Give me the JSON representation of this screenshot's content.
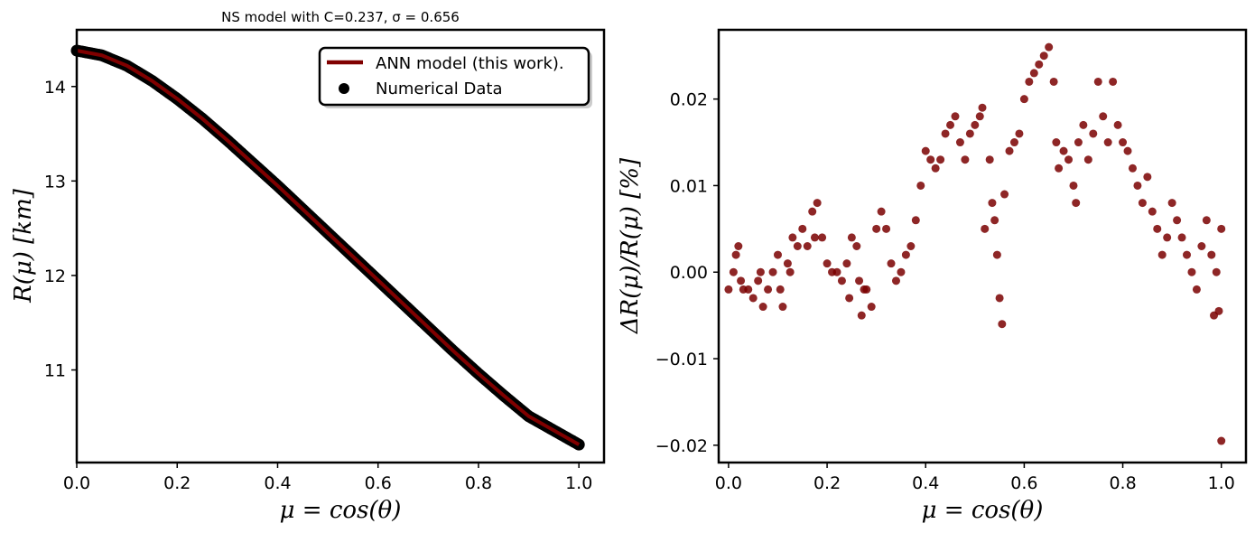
{
  "colors": {
    "line": "#800000",
    "left_points": "#000000",
    "right_points": "#7a0000"
  },
  "chart_data": [
    {
      "type": "line",
      "title": "NS model with C=0.237, σ = 0.656",
      "xlabel": "μ = cos(θ)",
      "ylabel": "R(μ) [km]",
      "xlim": [
        0,
        1.05
      ],
      "ylim": [
        10.02,
        14.6
      ],
      "xticks": [
        "0.0",
        "0.2",
        "0.4",
        "0.6",
        "0.8",
        "1.0"
      ],
      "yticks": [
        "11",
        "12",
        "13",
        "14"
      ],
      "grid": false,
      "legend_position": "top-right",
      "legend": [
        "ANN model (this work).",
        "Numerical Data"
      ],
      "series": [
        {
          "name": "ANN model (this work).",
          "kind": "line",
          "x": [
            0.0,
            0.05,
            0.1,
            0.15,
            0.2,
            0.25,
            0.3,
            0.35,
            0.4,
            0.45,
            0.5,
            0.55,
            0.6,
            0.65,
            0.7,
            0.75,
            0.8,
            0.85,
            0.9,
            0.95,
            1.0
          ],
          "y": [
            14.38,
            14.33,
            14.22,
            14.06,
            13.87,
            13.66,
            13.43,
            13.19,
            12.95,
            12.7,
            12.45,
            12.2,
            11.95,
            11.7,
            11.45,
            11.2,
            10.96,
            10.73,
            10.51,
            10.36,
            10.21
          ]
        },
        {
          "name": "Numerical Data",
          "kind": "scatter",
          "x": [
            0.0,
            0.05,
            0.1,
            0.15,
            0.2,
            0.25,
            0.3,
            0.35,
            0.4,
            0.45,
            0.5,
            0.55,
            0.6,
            0.65,
            0.7,
            0.75,
            0.8,
            0.85,
            0.9,
            0.95,
            1.0
          ],
          "y": [
            14.38,
            14.33,
            14.22,
            14.06,
            13.87,
            13.66,
            13.43,
            13.19,
            12.95,
            12.7,
            12.45,
            12.2,
            11.95,
            11.7,
            11.45,
            11.2,
            10.96,
            10.73,
            10.51,
            10.36,
            10.21
          ]
        }
      ]
    },
    {
      "type": "scatter",
      "title": "",
      "xlabel": "μ = cos(θ)",
      "ylabel": "ΔR(μ)/R(μ) [%]",
      "xlim": [
        -0.02,
        1.05
      ],
      "ylim": [
        -0.022,
        0.028
      ],
      "xticks": [
        "0.0",
        "0.2",
        "0.4",
        "0.6",
        "0.8",
        "1.0"
      ],
      "yticks": [
        "−0.02",
        "−0.01",
        "0.00",
        "0.01",
        "0.02"
      ],
      "grid": false,
      "series": [
        {
          "x": [
            0.0,
            0.01,
            0.015,
            0.02,
            0.025,
            0.03,
            0.04,
            0.05,
            0.06,
            0.065,
            0.07,
            0.08,
            0.09,
            0.1,
            0.105,
            0.11,
            0.12,
            0.125,
            0.13,
            0.14,
            0.15,
            0.16,
            0.17,
            0.175,
            0.18,
            0.19,
            0.2,
            0.21,
            0.22,
            0.23,
            0.24,
            0.245,
            0.25,
            0.26,
            0.265,
            0.27,
            0.275,
            0.28,
            0.29,
            0.3,
            0.31,
            0.32,
            0.33,
            0.34,
            0.35,
            0.36,
            0.37,
            0.38,
            0.39,
            0.4,
            0.41,
            0.42,
            0.43,
            0.44,
            0.45,
            0.46,
            0.47,
            0.48,
            0.49,
            0.5,
            0.51,
            0.515,
            0.52,
            0.53,
            0.535,
            0.54,
            0.545,
            0.55,
            0.555,
            0.56,
            0.57,
            0.58,
            0.59,
            0.6,
            0.61,
            0.62,
            0.63,
            0.64,
            0.65,
            0.66,
            0.665,
            0.67,
            0.68,
            0.69,
            0.7,
            0.705,
            0.71,
            0.72,
            0.73,
            0.74,
            0.75,
            0.76,
            0.77,
            0.78,
            0.79,
            0.8,
            0.81,
            0.82,
            0.83,
            0.84,
            0.85,
            0.86,
            0.87,
            0.88,
            0.89,
            0.9,
            0.91,
            0.92,
            0.93,
            0.94,
            0.95,
            0.96,
            0.97,
            0.98,
            0.99,
            1.0
          ],
          "y": [
            -0.002,
            0.0,
            0.002,
            0.003,
            -0.001,
            -0.002,
            -0.002,
            -0.003,
            -0.001,
            0.0,
            -0.004,
            -0.002,
            0.0,
            0.002,
            -0.002,
            -0.004,
            0.001,
            0.0,
            0.004,
            0.003,
            0.005,
            0.003,
            0.007,
            0.004,
            0.008,
            0.004,
            0.001,
            0.0,
            0.0,
            -0.001,
            0.001,
            -0.003,
            0.004,
            0.003,
            -0.001,
            -0.005,
            -0.002,
            -0.002,
            -0.004,
            0.005,
            0.007,
            0.005,
            0.001,
            -0.001,
            0.0,
            0.002,
            0.003,
            0.006,
            0.01,
            0.014,
            0.013,
            0.012,
            0.013,
            0.016,
            0.017,
            0.018,
            0.015,
            0.013,
            0.016,
            0.017,
            0.018,
            0.019,
            0.005,
            0.013,
            0.008,
            0.006,
            0.002,
            -0.003,
            -0.006,
            0.009,
            0.014,
            0.015,
            0.016,
            0.02,
            0.022,
            0.023,
            0.024,
            0.025,
            0.026,
            0.022,
            0.015,
            0.012,
            0.014,
            0.013,
            0.01,
            0.008,
            0.015,
            0.017,
            0.013,
            0.016,
            0.022,
            0.018,
            0.015,
            0.022,
            0.017,
            0.015,
            0.014,
            0.012,
            0.01,
            0.008,
            0.011,
            0.007,
            0.005,
            0.002,
            0.004,
            0.008,
            0.006,
            0.004,
            0.002,
            0.0,
            -0.002,
            0.003,
            0.006,
            0.002,
            0.0,
            0.005
          ],
          "outliers": {
            "x": [
              0.985,
              0.995,
              1.0
            ],
            "y": [
              -0.005,
              -0.0045,
              -0.0195
            ]
          }
        }
      ]
    }
  ]
}
